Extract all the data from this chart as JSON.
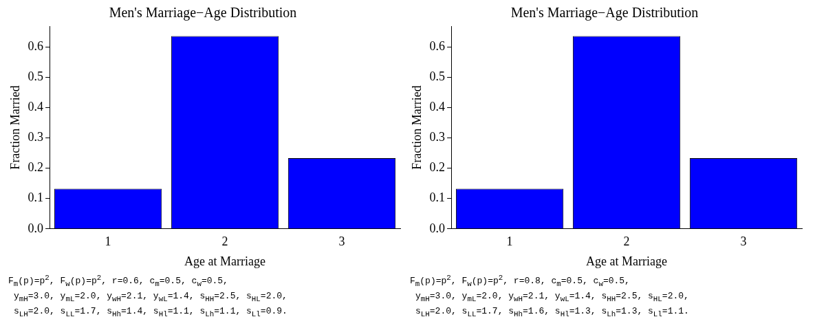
{
  "chart_data": [
    {
      "type": "bar",
      "title": "Men's Marriage−Age Distribution",
      "xlabel": "Age at Marriage",
      "ylabel": "Fraction Married",
      "categories": [
        "1",
        "2",
        "3"
      ],
      "values": [
        0.132,
        0.635,
        0.233
      ],
      "color": "#0000ff",
      "ylim": [
        0,
        0.668
      ],
      "yticks": [
        {
          "value": 0,
          "label": "0.0"
        },
        0.1,
        0.2,
        0.3,
        0.4,
        0.5,
        0.6
      ],
      "grid": false,
      "legend": false,
      "annotations": [
        "F$_{m}$(p)=p$^{2}$, F$_{w}$(p)=p$^{2}$, r=0.6, c$_{m}$=0.5, c$_{w}$=0.5,",
        "y$_{mH}$=3.0, y$_{mL}$=2.0, y$_{wH}$=2.1, y$_{wL}$=1.4, s$_{HH}$=2.5, s$_{HL}$=2.0,",
        "s$_{LH}$=2.0, s$_{LL}$=1.7, s$_{Hh}$=1.4, s$_{Hl}$=1.1, s$_{Lh}$=1.1, s$_{Ll}$=0.9."
      ]
    },
    {
      "type": "bar",
      "title": "Men's Marriage−Age Distribution",
      "xlabel": "Age at Marriage",
      "ylabel": "Fraction Married",
      "categories": [
        "1",
        "2",
        "3"
      ],
      "values": [
        0.132,
        0.635,
        0.233
      ],
      "color": "#0000ff",
      "ylim": [
        0,
        0.668
      ],
      "yticks": [
        {
          "value": 0,
          "label": "0.0"
        },
        0.1,
        0.2,
        0.3,
        0.4,
        0.5,
        0.6
      ],
      "grid": false,
      "legend": false,
      "annotations": [
        "F$_{m}$(p)=p$^{2}$, F$_{w}$(p)=p$^{2}$, r=0.8, c$_{m}$=0.5, c$_{w}$=0.5,",
        "y$_{mH}$=3.0, y$_{mL}$=2.0, y$_{wH}$=2.1, y$_{wL}$=1.4, s$_{HH}$=2.5, s$_{HL}$=2.0,",
        "s$_{LH}$=2.0, s$_{LL}$=1.7, s$_{Hh}$=1.6, s$_{Hl}$=1.3, s$_{Lh}$=1.3, s$_{Ll}$=1.1."
      ]
    }
  ]
}
